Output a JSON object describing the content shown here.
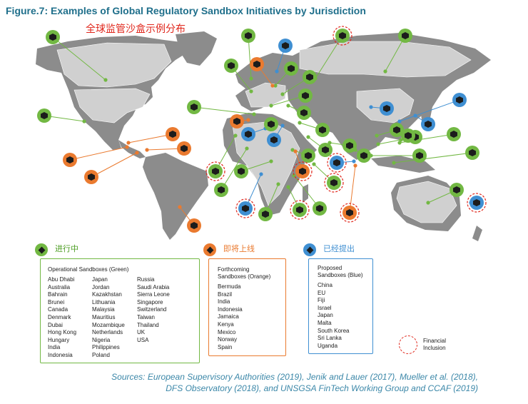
{
  "title": "Figure.7: Examples of Global Regulatory Sandbox Initiatives by Jurisdiction",
  "subtitle": "全球监管沙盒示例分布",
  "colors": {
    "green": "#72b843",
    "orange": "#ea7a2f",
    "blue": "#3f8fd2",
    "red_dash": "#e0261b",
    "title": "#1f6f8b"
  },
  "legend": {
    "operational": {
      "heading": "进行中",
      "label": "Operational Sandboxes (Green)",
      "col1": [
        "Abu Dhabi",
        "Australia",
        "Bahrain",
        "Brunei",
        "Canada",
        "Denmark",
        "Dubai",
        "Hong Kong",
        "Hungary",
        "India",
        "Indonesia"
      ],
      "col2": [
        "Japan",
        "Jordan",
        "Kazakhstan",
        "Lithuania",
        "Malaysia",
        "Mauritius",
        "Mozambique",
        "Netherlands",
        "Nigeria",
        "Philippines",
        "Poland"
      ],
      "col3": [
        "Russia",
        "Saudi Arabia",
        "Sierra Leone",
        "Singapore",
        "Switzerland",
        "Taiwan",
        "Thailand",
        "UK",
        "USA"
      ]
    },
    "forthcoming": {
      "heading": "即将上线",
      "label_line1": "Forthcoming",
      "label_line2": "Sandboxes (Orange)",
      "items": [
        "Bermuda",
        "Brazil",
        "India",
        "Indonesia",
        "Jamaica",
        "Kenya",
        "Mexico",
        "Norway",
        "Spain"
      ]
    },
    "proposed": {
      "heading": "已经提出",
      "label_line1": "Proposed",
      "label_line2": "Sandboxes (Blue)",
      "items": [
        "China",
        "EU",
        "Fiji",
        "Israel",
        "Japan",
        "Malta",
        "South Korea",
        "Sri Lanka",
        "Uganda"
      ]
    },
    "financial_inclusion": {
      "line1": "Financial",
      "line2": "Inclusion"
    }
  },
  "sources": {
    "line1": "Sources: European Supervisory Authorities (2019), Jenik and Lauer (2017), Mueller et al. (2018),",
    "line2": "DFS Observatory (2018), and UNSGSA FinTech Working Group and CCAF (2019)"
  },
  "markers": [
    {
      "status": "operational",
      "fi": false
    },
    {
      "status": "operational",
      "fi": false
    },
    {
      "status": "operational",
      "fi": false
    },
    {
      "status": "operational",
      "fi": true
    },
    {
      "status": "operational",
      "fi": false
    },
    {
      "status": "operational",
      "fi": false
    },
    {
      "status": "operational",
      "fi": false
    },
    {
      "status": "operational",
      "fi": false
    },
    {
      "status": "operational",
      "fi": false
    },
    {
      "status": "operational",
      "fi": false
    },
    {
      "status": "operational",
      "fi": false
    },
    {
      "status": "operational",
      "fi": false
    },
    {
      "status": "operational",
      "fi": false
    },
    {
      "status": "operational",
      "fi": false
    },
    {
      "status": "operational",
      "fi": true
    },
    {
      "status": "operational",
      "fi": false
    },
    {
      "status": "operational",
      "fi": false
    },
    {
      "status": "operational",
      "fi": false
    },
    {
      "status": "operational",
      "fi": false
    },
    {
      "status": "operational",
      "fi": false
    },
    {
      "status": "operational",
      "fi": false
    },
    {
      "status": "operational",
      "fi": false
    },
    {
      "status": "operational",
      "fi": false
    },
    {
      "status": "operational",
      "fi": false
    },
    {
      "status": "operational",
      "fi": false
    },
    {
      "status": "operational",
      "fi": true
    },
    {
      "status": "operational",
      "fi": false
    },
    {
      "status": "operational",
      "fi": true
    },
    {
      "status": "operational",
      "fi": false
    },
    {
      "status": "operational",
      "fi": false
    },
    {
      "status": "operational",
      "fi": false
    },
    {
      "status": "forthcoming",
      "fi": false
    },
    {
      "status": "forthcoming",
      "fi": false
    },
    {
      "status": "forthcoming",
      "fi": false
    },
    {
      "status": "forthcoming",
      "fi": false
    },
    {
      "status": "forthcoming",
      "fi": false
    },
    {
      "status": "forthcoming",
      "fi": false
    },
    {
      "status": "forthcoming",
      "fi": false
    },
    {
      "status": "forthcoming",
      "fi": true
    },
    {
      "status": "forthcoming",
      "fi": true
    },
    {
      "status": "proposed",
      "fi": false
    },
    {
      "status": "proposed",
      "fi": false
    },
    {
      "status": "proposed",
      "fi": false
    },
    {
      "status": "proposed",
      "fi": false
    },
    {
      "status": "proposed",
      "fi": false
    },
    {
      "status": "proposed",
      "fi": false
    },
    {
      "status": "proposed",
      "fi": true
    },
    {
      "status": "proposed",
      "fi": true
    },
    {
      "status": "proposed",
      "fi": true
    }
  ]
}
